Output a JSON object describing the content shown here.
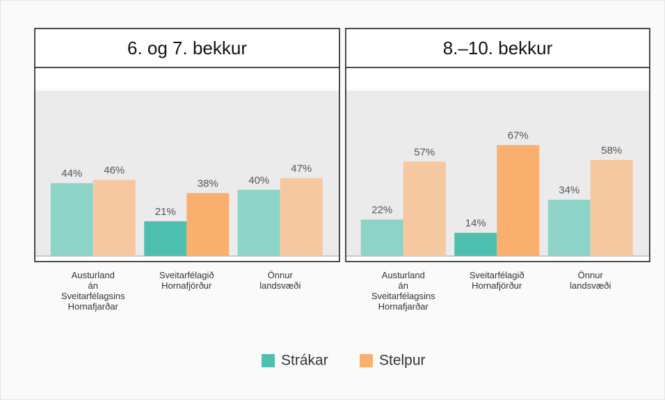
{
  "chart_data": {
    "type": "bar",
    "ylim": [
      0,
      100
    ],
    "series": [
      {
        "name": "Strákar",
        "color": "#8dd3c7",
        "highlight_color": "#4fbfb1"
      },
      {
        "name": "Stelpur",
        "color": "#f6c89f",
        "highlight_color": "#f9b06f"
      }
    ],
    "highlight": "Sveitarfélagið\nHornafjörður",
    "panels": [
      {
        "title": "6. og 7. bekkur",
        "categories": [
          "Austurland\nán\nSveitarfélagsins\nHornafjarðar",
          "Sveitarfélagið\nHornafjörður",
          "Önnur\nlandsvæði"
        ],
        "values": [
          [
            44,
            21,
            40
          ],
          [
            46,
            38,
            47
          ]
        ],
        "value_labels": [
          [
            "44%",
            "21%",
            "40%"
          ],
          [
            "46%",
            "38%",
            "47%"
          ]
        ]
      },
      {
        "title": "8.–10. bekkur",
        "categories": [
          "Austurland\nán\nSveitarfélagsins\nHornafjarðar",
          "Sveitarfélagið\nHornafjörður",
          "Önnur\nlandsvæði"
        ],
        "values": [
          [
            22,
            14,
            34
          ],
          [
            57,
            67,
            58
          ]
        ],
        "value_labels": [
          [
            "22%",
            "14%",
            "34%"
          ],
          [
            "57%",
            "67%",
            "58%"
          ]
        ]
      }
    ]
  }
}
